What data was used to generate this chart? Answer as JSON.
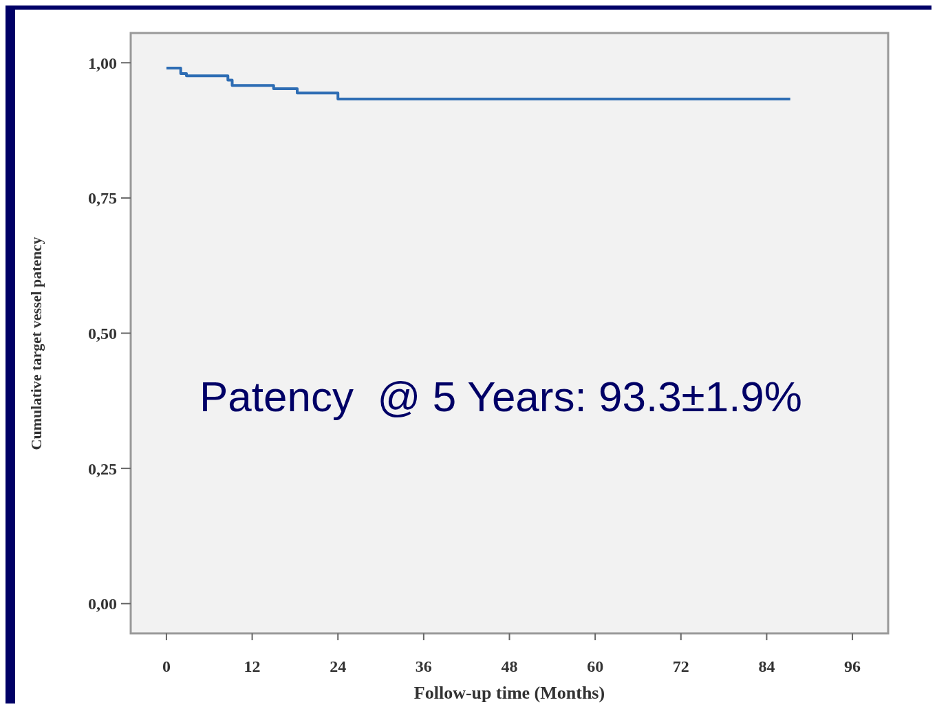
{
  "chart_data": {
    "type": "step",
    "xlabel": "Follow-up time (Months)",
    "ylabel": "Cumulative target vessel patency",
    "x": [
      0,
      2,
      2.8,
      8.6,
      9.2,
      15,
      18.3,
      24,
      87.3
    ],
    "series": [
      {
        "color": "#2e6db4",
        "values": [
          0.99,
          0.98,
          0.976,
          0.968,
          0.958,
          0.952,
          0.944,
          0.933,
          0.933
        ]
      }
    ],
    "xlim": [
      -5,
      101
    ],
    "xticks": [
      0,
      12,
      24,
      36,
      48,
      60,
      72,
      84,
      96
    ],
    "ylim": [
      -0.055,
      1.055
    ],
    "yticks": [
      {
        "value": 0,
        "label": "0,00"
      },
      {
        "value": 0.25,
        "label": "0,25"
      },
      {
        "value": 0.5,
        "label": "0,50"
      },
      {
        "value": 0.75,
        "label": "0,75"
      },
      {
        "value": 1,
        "label": "1,00"
      }
    ],
    "annotations": [
      "Patency  @ 5 Years: 93.3±1.9%"
    ],
    "grid": false
  }
}
